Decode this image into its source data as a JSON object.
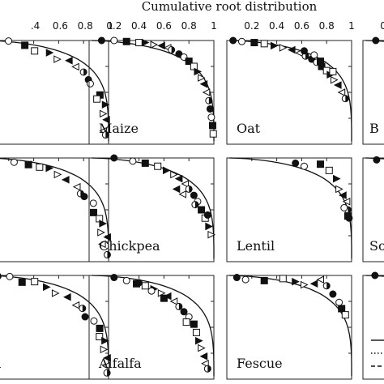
{
  "chart_data": {
    "type": "scatter",
    "title": "Cumulative root distribution",
    "x_ticks": [
      "0.2",
      "0.4",
      "0.6",
      "0.8",
      "1"
    ],
    "top_left_partial_ticks": [
      ".4",
      "0.6",
      "0.8",
      "1"
    ],
    "xlim": [
      0,
      1
    ],
    "panels": [
      {
        "id": "p1",
        "label": "",
        "row": 0,
        "col": 0
      },
      {
        "id": "p2",
        "label": "Maize",
        "row": 0,
        "col": 1
      },
      {
        "id": "p3",
        "label": "Oat",
        "row": 0,
        "col": 2
      },
      {
        "id": "p4",
        "label": "B",
        "row": 0,
        "col": 3
      },
      {
        "id": "p5",
        "label": "",
        "row": 1,
        "col": 0
      },
      {
        "id": "p6",
        "label": "Chickpea",
        "row": 1,
        "col": 1
      },
      {
        "id": "p7",
        "label": "Lentil",
        "row": 1,
        "col": 2
      },
      {
        "id": "p8",
        "label": "So",
        "row": 1,
        "col": 3
      },
      {
        "id": "p9",
        "label": "a",
        "row": 2,
        "col": 0
      },
      {
        "id": "p10",
        "label": "Alfalfa",
        "row": 2,
        "col": 1
      },
      {
        "id": "p11",
        "label": "Fescue",
        "row": 2,
        "col": 2
      },
      {
        "id": "p12",
        "label": "",
        "row": 2,
        "col": 3
      }
    ],
    "series_markers": [
      "filled-circle",
      "open-circle",
      "filled-square",
      "open-square",
      "filled-triangle-right",
      "open-triangle-right",
      "filled-triangle-left",
      "open-triangle-left",
      "half-circle"
    ],
    "legend_line_styles": [
      "solid",
      "dotted",
      "dashed"
    ],
    "points": {
      "p2": [
        [
          0.1,
          0.0
        ],
        [
          0.2,
          0.0
        ],
        [
          0.3,
          0.01
        ],
        [
          0.4,
          0.02
        ],
        [
          0.45,
          0.02
        ],
        [
          0.52,
          0.04
        ],
        [
          0.58,
          0.05
        ],
        [
          0.63,
          0.07
        ],
        [
          0.66,
          0.09
        ],
        [
          0.72,
          0.13
        ],
        [
          0.76,
          0.16
        ],
        [
          0.8,
          0.2
        ],
        [
          0.84,
          0.25
        ],
        [
          0.87,
          0.3
        ],
        [
          0.9,
          0.36
        ],
        [
          0.92,
          0.42
        ],
        [
          0.94,
          0.5
        ],
        [
          0.96,
          0.58
        ],
        [
          0.97,
          0.66
        ],
        [
          0.98,
          0.74
        ],
        [
          0.99,
          0.82
        ],
        [
          0.995,
          0.9
        ]
      ],
      "p3": [
        [
          0.05,
          0.0
        ],
        [
          0.12,
          0.01
        ],
        [
          0.22,
          0.02
        ],
        [
          0.3,
          0.03
        ],
        [
          0.38,
          0.05
        ],
        [
          0.45,
          0.07
        ],
        [
          0.52,
          0.09
        ],
        [
          0.58,
          0.12
        ],
        [
          0.63,
          0.15
        ],
        [
          0.68,
          0.18
        ],
        [
          0.72,
          0.21
        ],
        [
          0.76,
          0.25
        ],
        [
          0.8,
          0.29
        ],
        [
          0.83,
          0.33
        ],
        [
          0.86,
          0.38
        ],
        [
          0.89,
          0.43
        ],
        [
          0.92,
          0.5
        ],
        [
          0.95,
          0.56
        ],
        [
          0.62,
          0.1
        ],
        [
          0.7,
          0.14
        ],
        [
          0.75,
          0.2
        ],
        [
          0.85,
          0.3
        ]
      ],
      "p6": [
        [
          0.2,
          0.0
        ],
        [
          0.35,
          0.03
        ],
        [
          0.45,
          0.05
        ],
        [
          0.55,
          0.08
        ],
        [
          0.62,
          0.12
        ],
        [
          0.68,
          0.16
        ],
        [
          0.72,
          0.2
        ],
        [
          0.77,
          0.25
        ],
        [
          0.8,
          0.3
        ],
        [
          0.84,
          0.36
        ],
        [
          0.87,
          0.42
        ],
        [
          0.9,
          0.5
        ],
        [
          0.93,
          0.58
        ],
        [
          0.96,
          0.66
        ],
        [
          0.98,
          0.74
        ],
        [
          0.7,
          0.3
        ],
        [
          0.75,
          0.35
        ],
        [
          0.85,
          0.45
        ],
        [
          0.95,
          0.55
        ]
      ],
      "p7": [
        [
          0.55,
          0.05
        ],
        [
          0.62,
          0.08
        ],
        [
          0.75,
          0.06
        ],
        [
          0.82,
          0.12
        ],
        [
          0.88,
          0.2
        ],
        [
          0.9,
          0.3
        ],
        [
          0.93,
          0.36
        ],
        [
          0.96,
          0.42
        ],
        [
          0.97,
          0.5
        ],
        [
          0.98,
          0.58
        ],
        [
          0.94,
          0.48
        ],
        [
          0.97,
          0.56
        ]
      ],
      "p10": [
        [
          0.2,
          0.02
        ],
        [
          0.3,
          0.05
        ],
        [
          0.38,
          0.08
        ],
        [
          0.45,
          0.1
        ],
        [
          0.52,
          0.13
        ],
        [
          0.58,
          0.17
        ],
        [
          0.63,
          0.2
        ],
        [
          0.68,
          0.25
        ],
        [
          0.72,
          0.3
        ],
        [
          0.76,
          0.35
        ],
        [
          0.8,
          0.4
        ],
        [
          0.84,
          0.47
        ],
        [
          0.86,
          0.55
        ],
        [
          0.88,
          0.63
        ],
        [
          0.9,
          0.7
        ],
        [
          0.92,
          0.78
        ],
        [
          0.93,
          0.85
        ],
        [
          0.95,
          0.9
        ],
        [
          0.4,
          0.07
        ],
        [
          0.5,
          0.15
        ],
        [
          0.6,
          0.22
        ],
        [
          0.78,
          0.45
        ]
      ],
      "p11": [
        [
          0.08,
          0.02
        ],
        [
          0.15,
          0.04
        ],
        [
          0.3,
          0.05
        ],
        [
          0.45,
          0.03
        ],
        [
          0.55,
          0.06
        ],
        [
          0.62,
          0.09
        ],
        [
          0.7,
          0.08
        ],
        [
          0.75,
          0.04
        ],
        [
          0.8,
          0.1
        ],
        [
          0.85,
          0.18
        ],
        [
          0.9,
          0.26
        ],
        [
          0.92,
          0.32
        ],
        [
          0.95,
          0.38
        ]
      ]
    }
  }
}
